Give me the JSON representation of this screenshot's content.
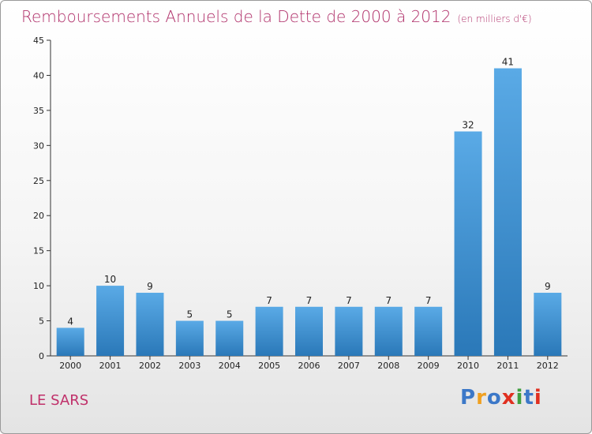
{
  "title": "Remboursements Annuels de la Dette de 2000 à 2012",
  "subtitle": "(en milliers d'€)",
  "commune": "LE SARS",
  "logo": {
    "text": "Proxiti",
    "letters": [
      {
        "ch": "P",
        "color": "#3c78c8"
      },
      {
        "ch": "r",
        "color": "#f0a020"
      },
      {
        "ch": "o",
        "color": "#3c78c8"
      },
      {
        "ch": "x",
        "color": "#e03020"
      },
      {
        "ch": "i",
        "color": "#40a040"
      },
      {
        "ch": "t",
        "color": "#3c78c8"
      },
      {
        "ch": "i",
        "color": "#e03020"
      }
    ]
  },
  "colors": {
    "title": "#b0306a",
    "bar_top": "#5aaae6",
    "bar_bottom": "#2a78b8",
    "axis": "#333333"
  },
  "chart_data": {
    "type": "bar",
    "categories": [
      "2000",
      "2001",
      "2002",
      "2003",
      "2004",
      "2005",
      "2006",
      "2007",
      "2008",
      "2009",
      "2010",
      "2011",
      "2012"
    ],
    "values": [
      4,
      10,
      9,
      5,
      5,
      7,
      7,
      7,
      7,
      7,
      32,
      41,
      9
    ],
    "ylim": [
      0,
      45
    ],
    "yticks": [
      0,
      5,
      10,
      15,
      20,
      25,
      30,
      35,
      40,
      45
    ],
    "grid": false,
    "data_labels": true
  }
}
